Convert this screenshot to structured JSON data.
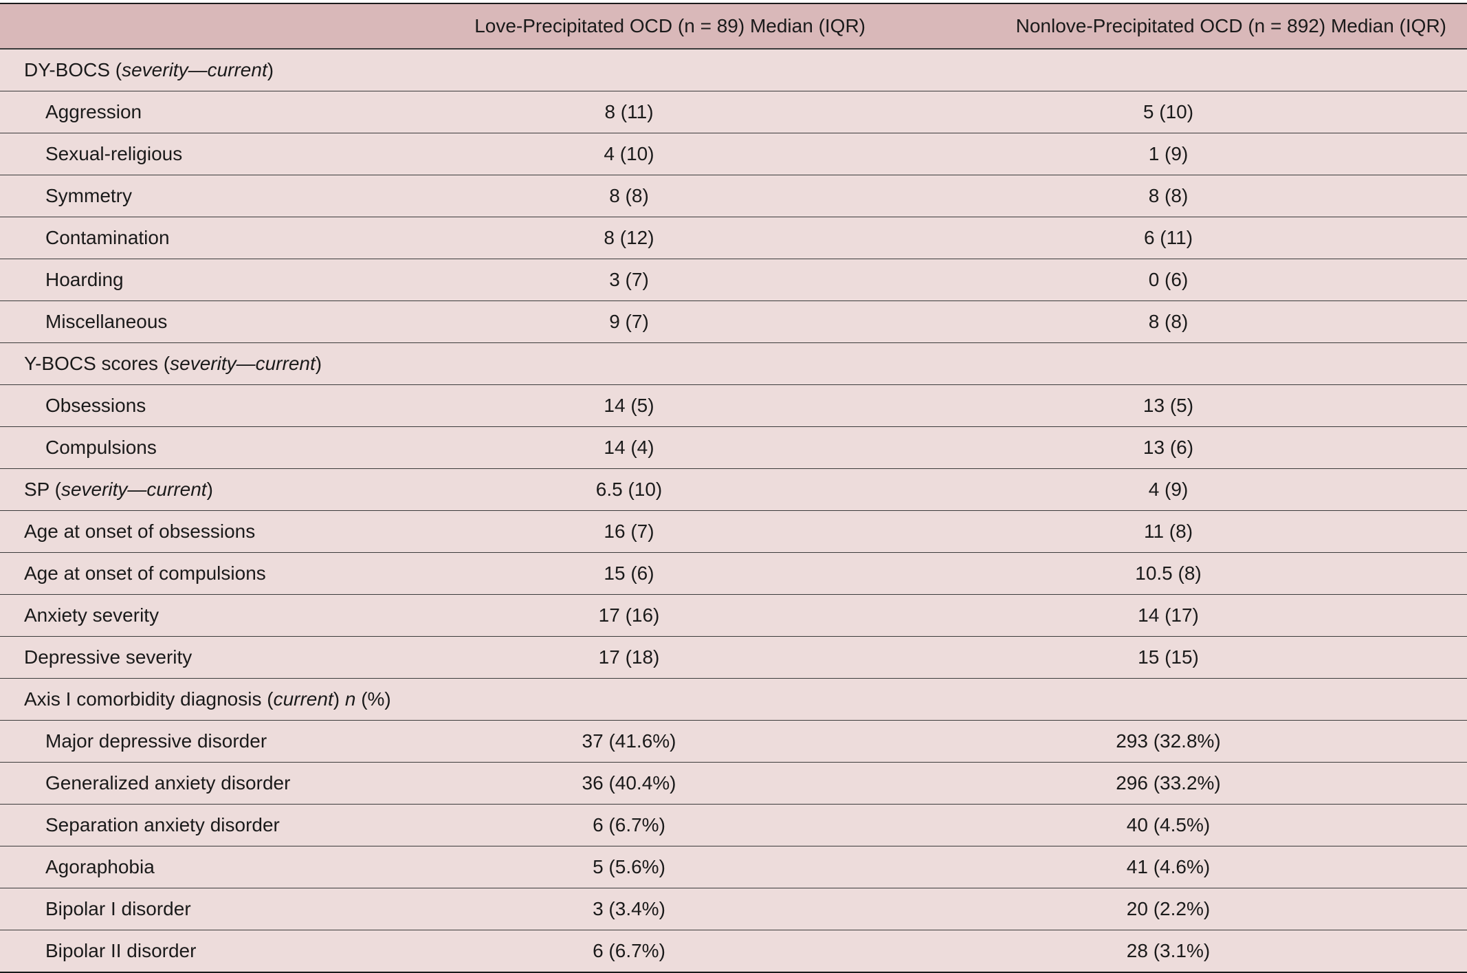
{
  "headers": {
    "blank": "",
    "love": "Love-Precipitated OCD (n = 89) Median (IQR)",
    "nonlove": "Nonlove-Precipitated OCD (n = 892) Median (IQR)"
  },
  "sections": {
    "dybocs": {
      "label": "DY-BOCS (",
      "italic": "severity—current",
      "tail": ")"
    },
    "ybocs": {
      "label": "Y-BOCS scores (",
      "italic": "severity—current",
      "tail": ")"
    },
    "sp": {
      "label": "SP (",
      "italic": "severity—current",
      "tail": ")",
      "love": "6.5 (10)",
      "nonlove": "4 (9)"
    },
    "axis": {
      "label": "Axis I comorbidity diagnosis (",
      "italic": "current",
      "mid": ") ",
      "italic2": "n",
      "tail": " (%)"
    }
  },
  "rows": {
    "aggression": {
      "label": "Aggression",
      "love": "8 (11)",
      "nonlove": "5 (10)"
    },
    "sexual": {
      "label": "Sexual-religious",
      "love": "4 (10)",
      "nonlove": "1 (9)"
    },
    "symmetry": {
      "label": "Symmetry",
      "love": "8 (8)",
      "nonlove": "8 (8)"
    },
    "contamination": {
      "label": "Contamination",
      "love": "8 (12)",
      "nonlove": "6 (11)"
    },
    "hoarding": {
      "label": "Hoarding",
      "love": "3 (7)",
      "nonlove": "0 (6)"
    },
    "misc": {
      "label": "Miscellaneous",
      "love": "9 (7)",
      "nonlove": "8 (8)"
    },
    "obsessions": {
      "label": "Obsessions",
      "love": "14 (5)",
      "nonlove": "13 (5)"
    },
    "compulsions": {
      "label": "Compulsions",
      "love": "14 (4)",
      "nonlove": "13 (6)"
    },
    "onset_obs": {
      "label": "Age at onset of obsessions",
      "love": "16 (7)",
      "nonlove": "11 (8)"
    },
    "onset_comp": {
      "label": "Age at onset of compulsions",
      "love": "15 (6)",
      "nonlove": "10.5 (8)"
    },
    "anxiety": {
      "label": "Anxiety severity",
      "love": "17 (16)",
      "nonlove": "14 (17)"
    },
    "depressive": {
      "label": "Depressive severity",
      "love": "17 (18)",
      "nonlove": "15 (15)"
    },
    "mdd": {
      "label": "Major depressive disorder",
      "love": "37 (41.6%)",
      "nonlove": "293 (32.8%)"
    },
    "gad": {
      "label": "Generalized anxiety disorder",
      "love": "36 (40.4%)",
      "nonlove": "296 (33.2%)"
    },
    "sad": {
      "label": "Separation anxiety disorder",
      "love": "6 (6.7%)",
      "nonlove": "40 (4.5%)"
    },
    "agoraphobia": {
      "label": "Agoraphobia",
      "love": "5 (5.6%)",
      "nonlove": "41 (4.6%)"
    },
    "bipolar1": {
      "label": "Bipolar I disorder",
      "love": "3 (3.4%)",
      "nonlove": "20 (2.2%)"
    },
    "bipolar2": {
      "label": "Bipolar II disorder",
      "love": "6 (6.7%)",
      "nonlove": "28 (3.1%)"
    }
  }
}
